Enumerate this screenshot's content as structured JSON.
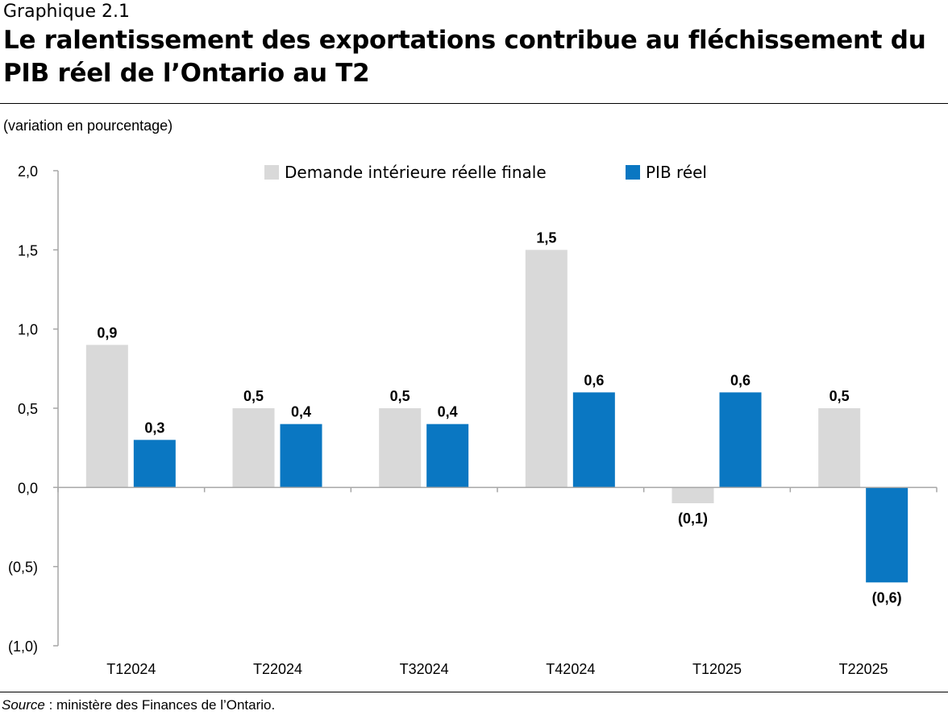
{
  "header": {
    "supertitle": "Graphique 2.1",
    "title": "Le ralentissement des exportations contribue au fléchissement du PIB réel de l’Ontario au T2"
  },
  "source": {
    "label": "Source",
    "text": " : ministère des Finances de l’Ontario."
  },
  "chart_data": {
    "type": "bar",
    "ylabel": "(variation en pourcentage)",
    "categories": [
      "T12024",
      "T22024",
      "T32024",
      "T42024",
      "T12025",
      "T22025"
    ],
    "series": [
      {
        "name": "Demande intérieure réelle finale",
        "color": "#d9d9d9",
        "values": [
          0.9,
          0.5,
          0.5,
          1.5,
          -0.1,
          0.5
        ],
        "labels": [
          "0,9",
          "0,5",
          "0,5",
          "1,5",
          "(0,1)",
          "0,5"
        ]
      },
      {
        "name": "PIB réel",
        "color": "#0a77c2",
        "values": [
          0.3,
          0.4,
          0.4,
          0.6,
          0.6,
          -0.6
        ],
        "labels": [
          "0,3",
          "0,4",
          "0,4",
          "0,6",
          "0,6",
          "(0,6)"
        ]
      }
    ],
    "ylim": [
      -1.0,
      2.0
    ],
    "yticks": [
      2.0,
      1.5,
      1.0,
      0.5,
      0.0,
      -0.5,
      -1.0
    ],
    "ytick_labels": [
      "2,0",
      "1,5",
      "1,0",
      "0,5",
      "0,0",
      "(0,5)",
      "(1,0)"
    ],
    "grid": false,
    "legend": "top-center"
  }
}
